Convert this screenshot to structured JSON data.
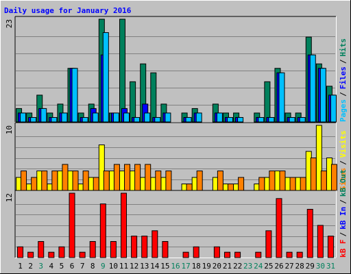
{
  "chart_data": {
    "type": "bar",
    "title": "Daily usage for January 2016",
    "categories": [
      "1",
      "2",
      "3",
      "4",
      "5",
      "6",
      "7",
      "8",
      "9",
      "10",
      "11",
      "12",
      "13",
      "14",
      "15",
      "16",
      "17",
      "18",
      "19",
      "20",
      "21",
      "22",
      "23",
      "24",
      "25",
      "26",
      "27",
      "28",
      "29",
      "30",
      "31"
    ],
    "category_colors": [
      "#000000",
      "#000000",
      "#00805c",
      "#000000",
      "#000000",
      "#000000",
      "#000000",
      "#000000",
      "#00805c",
      "#000000",
      "#000000",
      "#000000",
      "#000000",
      "#000000",
      "#000000",
      "#00805c",
      "#00805c",
      "#000000",
      "#000000",
      "#000000",
      "#000000",
      "#000000",
      "#00805c",
      "#00805c",
      "#000000",
      "#000000",
      "#000000",
      "#000000",
      "#000000",
      "#00805c",
      "#00805c"
    ],
    "separator": "/",
    "panels": [
      {
        "max_label": "23",
        "ylim": [
          0,
          23
        ],
        "legend": [
          {
            "text": "Pages",
            "color": "#00c0ff"
          },
          {
            "text": "Files",
            "color": "#0000ff"
          },
          {
            "text": "Hits",
            "color": "#00805c"
          }
        ],
        "series": [
          {
            "name": "Hits",
            "color": "#00805c",
            "values": [
              3,
              2,
              6,
              2,
              4,
              12,
              2,
              4,
              23,
              2,
              23,
              9,
              13,
              11,
              4,
              0,
              2,
              3,
              0,
              4,
              2,
              2,
              0,
              2,
              9,
              12,
              2,
              2,
              19,
              13,
              8
            ]
          },
          {
            "name": "Files",
            "color": "#0000ff",
            "values": [
              2,
              1,
              3,
              1,
              2,
              12,
              1,
              3,
              15,
              2,
              3,
              1,
              4,
              1,
              2,
              0,
              1,
              2,
              0,
              2,
              1,
              1,
              0,
              1,
              1,
              11,
              1,
              1,
              15,
              12,
              6
            ]
          },
          {
            "name": "Pages",
            "color": "#00c0ff",
            "values": [
              2,
              1,
              3,
              1,
              2,
              12,
              1,
              2,
              20,
              2,
              2,
              1,
              2,
              1,
              2,
              0,
              1,
              2,
              0,
              2,
              1,
              1,
              0,
              1,
              1,
              11,
              1,
              1,
              15,
              12,
              6
            ]
          }
        ]
      },
      {
        "max_label": "10",
        "ylim": [
          0,
          10
        ],
        "legend": [
          {
            "text": "Sites",
            "color": "#ff8000"
          },
          {
            "text": "Visits",
            "color": "#ffff00"
          }
        ],
        "series": [
          {
            "name": "Visits",
            "color": "#ffff00",
            "values": [
              2,
              1,
              3,
              1,
              3,
              3,
              1,
              2,
              7,
              3,
              3,
              3,
              2,
              2,
              2,
              0,
              1,
              2,
              0,
              2,
              1,
              1,
              0,
              1,
              2,
              3,
              2,
              2,
              6,
              10,
              5
            ]
          },
          {
            "name": "Sites",
            "color": "#ff8000",
            "values": [
              3,
              2,
              3,
              3,
              4,
              3,
              3,
              2,
              3,
              4,
              4,
              4,
              4,
              3,
              3,
              0,
              1,
              3,
              0,
              3,
              1,
              2,
              0,
              2,
              3,
              3,
              2,
              2,
              5,
              3,
              4
            ]
          }
        ]
      },
      {
        "max_label": "12",
        "ylim": [
          0,
          12
        ],
        "legend": [
          {
            "text": "kB F",
            "color": "#ff0000"
          },
          {
            "text": "kB In",
            "color": "#0000ff"
          },
          {
            "text": "kB Out",
            "color": "#00805c"
          }
        ],
        "series": [
          {
            "name": "kB F",
            "color": "#ff0000",
            "values": [
              2,
              1,
              3,
              1,
              2,
              12,
              1,
              3,
              10,
              3,
              12,
              4,
              4,
              5,
              3,
              0,
              1,
              2,
              0,
              2,
              1,
              1,
              0,
              1,
              5,
              11,
              1,
              1,
              9,
              6,
              4
            ]
          }
        ]
      }
    ]
  }
}
